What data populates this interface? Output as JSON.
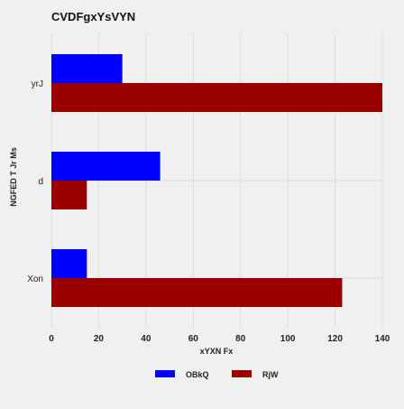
{
  "chart_data": {
    "type": "bar",
    "orientation": "horizontal",
    "title": "CVDFgxYsVYN",
    "xlabel": "xYXN Fx",
    "ylabel": "NGFED T Jr Ms",
    "categories": [
      "yrJ",
      "d",
      "Xon"
    ],
    "series": [
      {
        "name": "OBkQ",
        "color": "#0000ff",
        "values": [
          30,
          46,
          15
        ]
      },
      {
        "name": "RjW",
        "color": "#990000",
        "values": [
          140,
          15,
          123
        ]
      }
    ],
    "xlim": [
      0,
      140
    ],
    "xticks": [
      0,
      20,
      40,
      60,
      80,
      100,
      120,
      140
    ],
    "grid": true,
    "legend": "bottom-center"
  }
}
